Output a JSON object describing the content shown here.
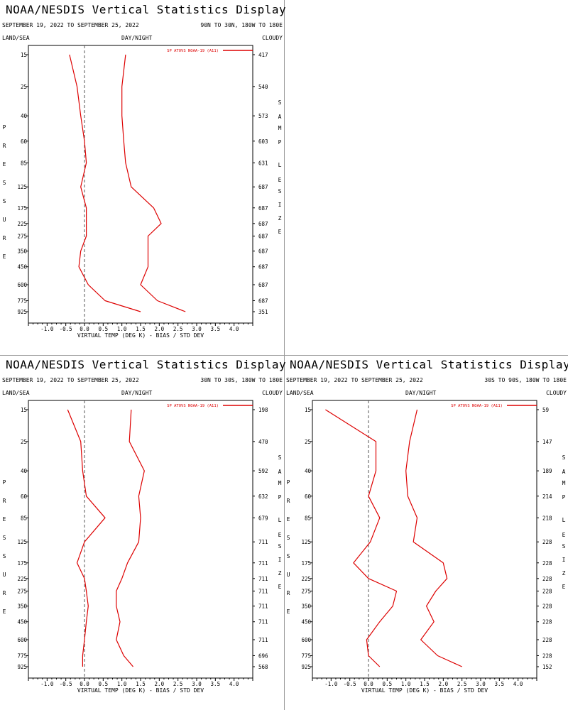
{
  "page": {
    "common": {
      "title": "NOAA/NESDIS Vertical Statistics Display",
      "dates": "SEPTEMBER 19, 2022 TO SEPTEMBER 25, 2022",
      "land_sea": "LAND/SEA",
      "day_night": "DAY/NIGHT",
      "cloudy": "CLOUDY",
      "pressure_label": "PRESSURE",
      "sample_size_label": "SAMPLE SIZE",
      "xlabel": "VIRTUAL TEMP (DEG K) - BIAS / STD DEV",
      "legend": "SP ATOVS NOAA-19 (A11)",
      "line_color": "#dd0000"
    }
  },
  "chart_data": [
    {
      "type": "line",
      "region": "90N TO 30N, 180W TO 180E",
      "title": "NOAA/NESDIS Vertical Statistics Display",
      "xlabel": "VIRTUAL TEMP (DEG K) - BIAS / STD DEV",
      "xlim": [
        -1.5,
        4.5
      ],
      "xticks": [
        "-1.0",
        "-0.5",
        "0.0",
        "0.5",
        "1.0",
        "1.5",
        "2.0",
        "2.5",
        "3.0",
        "3.5",
        "4.0"
      ],
      "pressure_levels": [
        "15",
        "25",
        "40",
        "60",
        "85",
        "125",
        "175",
        "225",
        "275",
        "350",
        "450",
        "600",
        "775",
        "925"
      ],
      "sample_size": [
        "417",
        "540",
        "573",
        "603",
        "631",
        "687",
        "687",
        "687",
        "687",
        "687",
        "687",
        "687",
        "687",
        "351"
      ],
      "series": [
        {
          "name": "SP ATOVS NOAA-19 (A11)",
          "kind": "bias",
          "values": [
            -0.4,
            -0.2,
            -0.1,
            0.0,
            0.05,
            -0.1,
            0.05,
            0.05,
            0.05,
            -0.1,
            -0.15,
            0.1,
            0.55,
            1.5
          ]
        },
        {
          "name": "SP ATOVS NOAA-19 (A11)",
          "kind": "std_dev",
          "values": [
            1.1,
            1.0,
            1.0,
            1.05,
            1.1,
            1.25,
            1.85,
            2.05,
            1.7,
            1.7,
            1.7,
            1.5,
            1.95,
            2.7
          ]
        }
      ]
    },
    {
      "type": "line",
      "region": "30N TO 30S, 180W TO 180E",
      "title": "NOAA/NESDIS Vertical Statistics Display",
      "xlabel": "VIRTUAL TEMP (DEG K) - BIAS / STD DEV",
      "xlim": [
        -1.5,
        4.5
      ],
      "xticks": [
        "-1.0",
        "-0.5",
        "0.0",
        "0.5",
        "1.0",
        "1.5",
        "2.0",
        "2.5",
        "3.0",
        "3.5",
        "4.0"
      ],
      "pressure_levels": [
        "15",
        "25",
        "40",
        "60",
        "85",
        "125",
        "175",
        "225",
        "275",
        "350",
        "450",
        "600",
        "775",
        "925"
      ],
      "sample_size": [
        "198",
        "470",
        "592",
        "632",
        "679",
        "711",
        "711",
        "711",
        "711",
        "711",
        "711",
        "711",
        "696",
        "568"
      ],
      "series": [
        {
          "name": "SP ATOVS NOAA-19 (A11)",
          "kind": "bias",
          "values": [
            -0.45,
            -0.1,
            -0.05,
            0.05,
            0.55,
            0.0,
            -0.2,
            0.0,
            0.05,
            0.1,
            0.05,
            0.0,
            -0.05,
            -0.05
          ]
        },
        {
          "name": "SP ATOVS NOAA-19 (A11)",
          "kind": "std_dev",
          "values": [
            1.25,
            1.2,
            1.6,
            1.45,
            1.5,
            1.45,
            1.15,
            1.0,
            0.85,
            0.85,
            0.95,
            0.85,
            1.05,
            1.3
          ]
        }
      ]
    },
    {
      "type": "line",
      "region": "30S TO 90S, 180W TO 180E",
      "title": "NOAA/NESDIS Vertical Statistics Display",
      "xlabel": "VIRTUAL TEMP (DEG K) - BIAS / STD DEV",
      "xlim": [
        -1.5,
        4.5
      ],
      "xticks": [
        "-1.0",
        "-0.5",
        "0.0",
        "0.5",
        "1.0",
        "1.5",
        "2.0",
        "2.5",
        "3.0",
        "3.5",
        "4.0"
      ],
      "pressure_levels": [
        "15",
        "25",
        "40",
        "60",
        "85",
        "125",
        "175",
        "225",
        "275",
        "350",
        "450",
        "600",
        "775",
        "925"
      ],
      "sample_size": [
        "59",
        "147",
        "189",
        "214",
        "218",
        "228",
        "228",
        "228",
        "228",
        "228",
        "228",
        "228",
        "228",
        "152"
      ],
      "series": [
        {
          "name": "SP ATOVS NOAA-19 (A11)",
          "kind": "bias",
          "values": [
            -1.15,
            0.2,
            0.2,
            0.0,
            0.3,
            0.05,
            -0.4,
            0.0,
            0.75,
            0.65,
            0.3,
            -0.05,
            0.0,
            0.3
          ]
        },
        {
          "name": "SP ATOVS NOAA-19 (A11)",
          "kind": "std_dev",
          "values": [
            1.3,
            1.1,
            1.0,
            1.05,
            1.3,
            1.2,
            2.0,
            2.1,
            1.8,
            1.55,
            1.75,
            1.4,
            1.85,
            2.5
          ]
        }
      ]
    }
  ]
}
